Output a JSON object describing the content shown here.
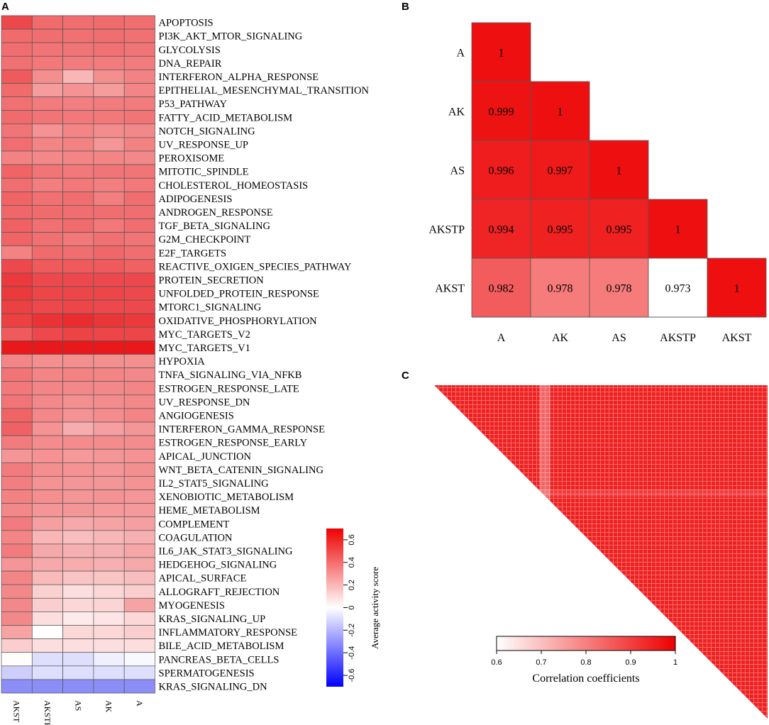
{
  "panels": {
    "a": "A",
    "b": "B",
    "c": "C"
  },
  "chart_data": [
    {
      "type": "heatmap",
      "panel": "A",
      "columns": [
        "AKST",
        "AKSTP",
        "AS",
        "AK",
        "A"
      ],
      "rows": [
        {
          "label": "APOPTOSIS",
          "values": [
            0.55,
            0.45,
            0.44,
            0.45,
            0.44
          ]
        },
        {
          "label": "PI3K_AKT_MTOR_SIGNALING",
          "values": [
            0.45,
            0.44,
            0.43,
            0.44,
            0.43
          ]
        },
        {
          "label": "GLYCOLYSIS",
          "values": [
            0.44,
            0.42,
            0.42,
            0.43,
            0.42
          ]
        },
        {
          "label": "DNA_REPAIR",
          "values": [
            0.43,
            0.41,
            0.4,
            0.4,
            0.4
          ]
        },
        {
          "label": "INTERFERON_ALPHA_RESPONSE",
          "values": [
            0.5,
            0.34,
            0.22,
            0.34,
            0.38
          ]
        },
        {
          "label": "EPITHELIAL_MESENCHYMAL_TRANSITION",
          "values": [
            0.45,
            0.3,
            0.33,
            0.3,
            0.37
          ]
        },
        {
          "label": "P53_PATHWAY",
          "values": [
            0.43,
            0.4,
            0.39,
            0.4,
            0.4
          ]
        },
        {
          "label": "FATTY_ACID_METABOLISM",
          "values": [
            0.45,
            0.42,
            0.41,
            0.41,
            0.42
          ]
        },
        {
          "label": "NOTCH_SIGNALING",
          "values": [
            0.42,
            0.33,
            0.37,
            0.35,
            0.36
          ]
        },
        {
          "label": "UV_RESPONSE_UP",
          "values": [
            0.44,
            0.37,
            0.38,
            0.32,
            0.38
          ]
        },
        {
          "label": "PEROXISOME",
          "values": [
            0.38,
            0.36,
            0.37,
            0.37,
            0.36
          ]
        },
        {
          "label": "MITOTIC_SPINDLE",
          "values": [
            0.47,
            0.42,
            0.41,
            0.42,
            0.42
          ]
        },
        {
          "label": "CHOLESTEROL_HOMEOSTASIS",
          "values": [
            0.44,
            0.39,
            0.41,
            0.39,
            0.41
          ]
        },
        {
          "label": "ADIPOGENESIS",
          "values": [
            0.47,
            0.43,
            0.44,
            0.39,
            0.44
          ]
        },
        {
          "label": "ANDROGEN_RESPONSE",
          "values": [
            0.46,
            0.45,
            0.44,
            0.44,
            0.44
          ]
        },
        {
          "label": "TGF_BETA_SIGNALING",
          "values": [
            0.48,
            0.43,
            0.45,
            0.41,
            0.44
          ]
        },
        {
          "label": "G2M_CHECKPOINT",
          "values": [
            0.47,
            0.43,
            0.41,
            0.43,
            0.42
          ]
        },
        {
          "label": "E2F_TARGETS",
          "values": [
            0.38,
            0.45,
            0.44,
            0.46,
            0.44
          ]
        },
        {
          "label": "REACTIVE_OXIGEN_SPECIES_PATHWAY",
          "values": [
            0.55,
            0.5,
            0.5,
            0.5,
            0.48
          ]
        },
        {
          "label": "PROTEIN_SECRETION",
          "values": [
            0.6,
            0.55,
            0.55,
            0.55,
            0.55
          ]
        },
        {
          "label": "UNFOLDED_PROTEIN_RESPONSE",
          "values": [
            0.6,
            0.56,
            0.56,
            0.56,
            0.55
          ]
        },
        {
          "label": "MTORC1_SIGNALING",
          "values": [
            0.58,
            0.55,
            0.56,
            0.55,
            0.55
          ]
        },
        {
          "label": "OXIDATIVE_PHOSPHORYLATION",
          "values": [
            0.58,
            0.62,
            0.64,
            0.61,
            0.6
          ]
        },
        {
          "label": "MYC_TARGETS_V2",
          "values": [
            0.5,
            0.55,
            0.57,
            0.56,
            0.56
          ]
        },
        {
          "label": "MYC_TARGETS_V1",
          "values": [
            0.72,
            0.72,
            0.72,
            0.72,
            0.72
          ]
        },
        {
          "label": "HYPOXIA",
          "values": [
            0.37,
            0.34,
            0.34,
            0.34,
            0.34
          ]
        },
        {
          "label": "TNFA_SIGNALING_VIA_NFKB",
          "values": [
            0.42,
            0.37,
            0.38,
            0.37,
            0.36
          ]
        },
        {
          "label": "ESTROGEN_RESPONSE_LATE",
          "values": [
            0.41,
            0.37,
            0.36,
            0.36,
            0.37
          ]
        },
        {
          "label": "UV_RESPONSE_DN",
          "values": [
            0.42,
            0.36,
            0.34,
            0.35,
            0.36
          ]
        },
        {
          "label": "ANGIOGENESIS",
          "values": [
            0.47,
            0.36,
            0.33,
            0.35,
            0.37
          ]
        },
        {
          "label": "INTERFERON_GAMMA_RESPONSE",
          "values": [
            0.48,
            0.33,
            0.25,
            0.29,
            0.32
          ]
        },
        {
          "label": "ESTROGEN_RESPONSE_EARLY",
          "values": [
            0.4,
            0.35,
            0.35,
            0.35,
            0.35
          ]
        },
        {
          "label": "APICAL_JUNCTION",
          "values": [
            0.32,
            0.33,
            0.31,
            0.32,
            0.33
          ]
        },
        {
          "label": "WNT_BETA_CATENIN_SIGNALING",
          "values": [
            0.4,
            0.34,
            0.33,
            0.32,
            0.34
          ]
        },
        {
          "label": "IL2_STAT5_SIGNALING",
          "values": [
            0.39,
            0.33,
            0.32,
            0.32,
            0.33
          ]
        },
        {
          "label": "XENOBIOTIC_METABOLISM",
          "values": [
            0.38,
            0.34,
            0.32,
            0.33,
            0.32
          ]
        },
        {
          "label": "HEME_METABOLISM",
          "values": [
            0.36,
            0.32,
            0.32,
            0.31,
            0.31
          ]
        },
        {
          "label": "COMPLEMENT",
          "values": [
            0.4,
            0.29,
            0.26,
            0.28,
            0.29
          ]
        },
        {
          "label": "COAGULATION",
          "values": [
            0.37,
            0.22,
            0.2,
            0.22,
            0.24
          ]
        },
        {
          "label": "IL6_JAK_STAT3_SIGNALING",
          "values": [
            0.4,
            0.26,
            0.24,
            0.24,
            0.27
          ]
        },
        {
          "label": "HEDGEHOG_SIGNALING",
          "values": [
            0.32,
            0.26,
            0.25,
            0.24,
            0.26
          ]
        },
        {
          "label": "APICAL_SURFACE",
          "values": [
            0.37,
            0.21,
            0.18,
            0.18,
            0.2
          ]
        },
        {
          "label": "ALLOGRAFT_REJECTION",
          "values": [
            0.36,
            0.14,
            0.1,
            0.12,
            0.15
          ]
        },
        {
          "label": "MYOGENESIS",
          "values": [
            0.36,
            0.15,
            0.12,
            0.13,
            0.28
          ]
        },
        {
          "label": "KRAS_SIGNALING_UP",
          "values": [
            0.36,
            0.1,
            0.06,
            0.08,
            0.12
          ]
        },
        {
          "label": "INFLAMMATORY_RESPONSE",
          "values": [
            0.28,
            0.0,
            0.12,
            0.12,
            0.15
          ]
        },
        {
          "label": "BILE_ACID_METABOLISM",
          "values": [
            0.15,
            0.1,
            0.1,
            0.1,
            0.1
          ]
        },
        {
          "label": "PANCREAS_BETA_CELLS",
          "values": [
            0.01,
            -0.1,
            -0.1,
            -0.05,
            -0.02
          ]
        },
        {
          "label": "SPERMATOGENESIS",
          "values": [
            -0.15,
            -0.1,
            -0.1,
            -0.1,
            -0.1
          ]
        },
        {
          "label": "KRAS_SIGNALING_DN",
          "values": [
            -0.35,
            -0.35,
            -0.35,
            -0.35,
            -0.35
          ]
        }
      ],
      "legend": {
        "title": "Average activity score",
        "ticks": [
          "0.6",
          "0.4",
          "0.2",
          "0",
          "-0.2",
          "-0.4",
          "-0.6"
        ],
        "range": [
          -0.7,
          0.7
        ]
      },
      "colors": {
        "high": "#e8181b",
        "mid": "#ffffff",
        "low": "#1a1aee"
      }
    },
    {
      "type": "heatmap",
      "panel": "B",
      "labels": [
        "A",
        "AK",
        "AS",
        "AKSTP",
        "AKST"
      ],
      "matrix": [
        [
          "1"
        ],
        [
          "0.999",
          "1"
        ],
        [
          "0.996",
          "0.997",
          "1"
        ],
        [
          "0.994",
          "0.995",
          "0.995",
          "1"
        ],
        [
          "0.982",
          "0.978",
          "0.978",
          "0.973",
          "1"
        ]
      ],
      "color_range": [
        0.973,
        1
      ]
    },
    {
      "type": "heatmap",
      "panel": "C",
      "shape": "lower-triangular correlation matrix",
      "legend": {
        "title": "Correlation coefficients",
        "ticks": [
          "0.6",
          "0.7",
          "0.8",
          "0.9",
          "1"
        ],
        "range": [
          0.6,
          1
        ]
      }
    }
  ]
}
